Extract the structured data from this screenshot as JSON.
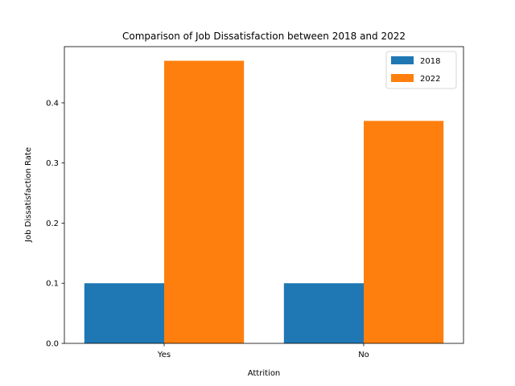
{
  "chart_data": {
    "type": "bar",
    "title": "Comparison of Job Dissatisfaction between 2018 and 2022",
    "xlabel": "Attrition",
    "ylabel": "Job Dissatisfaction Rate",
    "categories": [
      "Yes",
      "No"
    ],
    "series": [
      {
        "name": "2018",
        "values": [
          0.1,
          0.1
        ],
        "color": "#1f77b4"
      },
      {
        "name": "2022",
        "values": [
          0.47,
          0.37
        ],
        "color": "#ff7f0e"
      }
    ],
    "ylim": [
      0,
      0.4935
    ],
    "yticks": [
      0.0,
      0.1,
      0.2,
      0.3,
      0.4
    ],
    "ytick_labels": [
      "0.0",
      "0.1",
      "0.2",
      "0.3",
      "0.4"
    ],
    "grid": false,
    "legend_position": "top-right"
  }
}
